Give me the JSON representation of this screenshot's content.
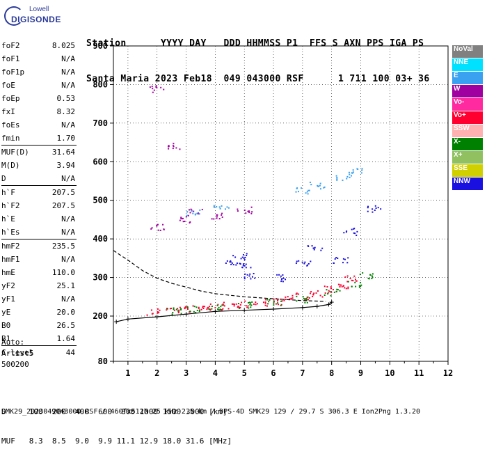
{
  "logo": {
    "line1": "Lowell",
    "line2": "DIGISONDE"
  },
  "header": {
    "row1": "Station      YYYY DAY   DDD HHMMSS P1  FFS S AXN PPS IGA PS",
    "row2": "Santa Maria 2023 Feb18  049 043000 RSF      1 711 100 03+ 36"
  },
  "params": {
    "group1": [
      {
        "k": "foF2",
        "v": "8.025"
      },
      {
        "k": "foF1",
        "v": "N/A"
      },
      {
        "k": "foF1p",
        "v": "N/A"
      },
      {
        "k": "foE",
        "v": "N/A"
      },
      {
        "k": "foEp",
        "v": "0.53"
      },
      {
        "k": "fxI",
        "v": "8.32"
      },
      {
        "k": "foEs",
        "v": "N/A"
      },
      {
        "k": "fmin",
        "v": "1.70"
      }
    ],
    "group2": [
      {
        "k": "MUF(D)",
        "v": "31.64"
      },
      {
        "k": "M(D)",
        "v": "3.94"
      },
      {
        "k": "D",
        "v": "N/A"
      }
    ],
    "group3": [
      {
        "k": "h`F",
        "v": "207.5"
      },
      {
        "k": "h`F2",
        "v": "207.5"
      },
      {
        "k": "h`E",
        "v": "N/A"
      },
      {
        "k": "h`Es",
        "v": "N/A"
      }
    ],
    "group4": [
      {
        "k": "hmF2",
        "v": "235.5"
      },
      {
        "k": "hmF1",
        "v": "N/A"
      },
      {
        "k": "hmE",
        "v": "110.0"
      },
      {
        "k": "yF2",
        "v": "25.1"
      },
      {
        "k": "yF1",
        "v": "N/A"
      },
      {
        "k": "yE",
        "v": "20.0"
      },
      {
        "k": "B0",
        "v": "26.5"
      },
      {
        "k": "B1",
        "v": "1.64"
      }
    ],
    "group5": [
      {
        "k": "C-level",
        "v": "44"
      }
    ]
  },
  "autoscale": {
    "l1": "Auto:",
    "l2": "Artist5",
    "l3": "500200"
  },
  "legend": [
    {
      "label": "NoVal",
      "color": "#808080"
    },
    {
      "label": "NNE",
      "color": "#00e0ff"
    },
    {
      "label": "E",
      "color": "#3aa0f0"
    },
    {
      "label": "W",
      "color": "#a000a0"
    },
    {
      "label": "Vo-",
      "color": "#ff2aa0"
    },
    {
      "label": "Vo+",
      "color": "#ff0030"
    },
    {
      "label": "SSW",
      "color": "#ffb0b0"
    },
    {
      "label": "X-",
      "color": "#008000"
    },
    {
      "label": "X+",
      "color": "#90c060"
    },
    {
      "label": "SSE",
      "color": "#d0d000"
    },
    {
      "label": "NNW",
      "color": "#1a10e0"
    }
  ],
  "footer": {
    "d_row": "D     100  200  400  600  800 1000 1500 3000 [km]",
    "muf_row": "MUF   8.3  8.5  9.0  9.9 11.1 12.9 18.0 31.6 [MHz]",
    "info": "SMK29_2023049043000.RSF / 460fx512h 25 kHz 2.5 km / DPS-4D SMK29 129 / 29.7 S 306.3 E Ion2Png 1.3.20"
  },
  "chart_data": {
    "type": "scatter",
    "title": "",
    "xlabel": "",
    "ylabel": "",
    "xlim": [
      0.5,
      12
    ],
    "ylim": [
      80,
      900
    ],
    "xticks": [
      1,
      2,
      3,
      4,
      5,
      6,
      7,
      8,
      9,
      10,
      11,
      12
    ],
    "yticks": [
      80,
      200,
      300,
      400,
      500,
      600,
      700,
      800,
      900
    ],
    "grid": "dotted vertical + horizontal at major ticks",
    "legend_position": "right",
    "series": [
      {
        "name": "Vo+",
        "points": [
          [
            1.9,
            212
          ],
          [
            2.5,
            218
          ],
          [
            3.0,
            220
          ],
          [
            3.5,
            222
          ],
          [
            4.0,
            225
          ],
          [
            4.5,
            228
          ],
          [
            5.0,
            232
          ],
          [
            5.5,
            236
          ],
          [
            6.0,
            240
          ],
          [
            6.5,
            246
          ],
          [
            7.0,
            252
          ],
          [
            7.5,
            260
          ],
          [
            8.0,
            270
          ],
          [
            8.3,
            282
          ],
          [
            8.6,
            298
          ]
        ]
      },
      {
        "name": "X-",
        "points": [
          [
            2.6,
            214
          ],
          [
            3.2,
            218
          ],
          [
            4.0,
            222
          ],
          [
            5.0,
            230
          ],
          [
            6.0,
            236
          ],
          [
            7.0,
            245
          ],
          [
            8.0,
            262
          ],
          [
            8.8,
            285
          ],
          [
            9.2,
            305
          ]
        ]
      },
      {
        "name": "NNW",
        "points": [
          [
            4.5,
            340
          ],
          [
            5.0,
            330
          ],
          [
            5.2,
            305
          ],
          [
            4.8,
            355
          ],
          [
            6.2,
            300
          ],
          [
            7.0,
            340
          ],
          [
            7.4,
            380
          ],
          [
            8.3,
            345
          ],
          [
            8.6,
            420
          ],
          [
            9.4,
            480
          ]
        ]
      },
      {
        "name": "W",
        "points": [
          [
            2.0,
            430
          ],
          [
            3.0,
            450
          ],
          [
            4.0,
            462
          ],
          [
            5.0,
            475
          ],
          [
            2.6,
            640
          ],
          [
            2.0,
            790
          ],
          [
            3.3,
            470
          ]
        ]
      },
      {
        "name": "E",
        "points": [
          [
            3.2,
            470
          ],
          [
            4.2,
            485
          ],
          [
            7.0,
            525
          ],
          [
            7.5,
            540
          ],
          [
            8.4,
            560
          ],
          [
            8.8,
            575
          ]
        ]
      }
    ],
    "trace_x_mode": [
      [
        0.6,
        185
      ],
      [
        1.0,
        192
      ],
      [
        2.0,
        198
      ],
      [
        3.0,
        205
      ],
      [
        4.0,
        212
      ],
      [
        5.0,
        215
      ],
      [
        6.0,
        218
      ],
      [
        7.0,
        222
      ],
      [
        7.5,
        225
      ],
      [
        7.9,
        230
      ],
      [
        8.0,
        236
      ]
    ],
    "trace_o_dashed": [
      [
        0.5,
        370
      ],
      [
        1.0,
        345
      ],
      [
        1.5,
        318
      ],
      [
        2.0,
        298
      ],
      [
        2.5,
        285
      ],
      [
        3.0,
        275
      ],
      [
        3.5,
        265
      ],
      [
        4.0,
        258
      ],
      [
        5.0,
        250
      ],
      [
        6.0,
        245
      ],
      [
        7.0,
        240
      ],
      [
        7.8,
        238
      ]
    ]
  }
}
